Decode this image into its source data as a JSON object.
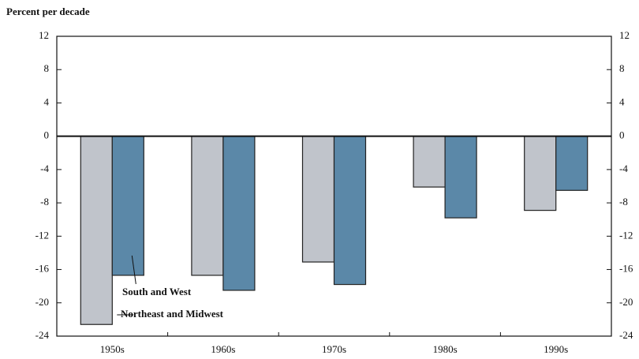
{
  "chart_data": {
    "type": "bar",
    "y_axis_label": "Percent per decade",
    "categories": [
      "1950s",
      "1960s",
      "1970s",
      "1980s",
      "1990s"
    ],
    "series": [
      {
        "name": "Northeast and Midwest",
        "color": "#c0c4cb",
        "values": [
          -22.6,
          -16.7,
          -15.1,
          -6.1,
          -8.9
        ]
      },
      {
        "name": "South and West",
        "color": "#5b88a8",
        "values": [
          -16.7,
          -18.5,
          -17.8,
          -9.8,
          -6.5
        ]
      }
    ],
    "ylim": [
      -24,
      12
    ],
    "yticks": [
      -24,
      -20,
      -16,
      -12,
      -8,
      -4,
      0,
      4,
      8,
      12
    ]
  }
}
